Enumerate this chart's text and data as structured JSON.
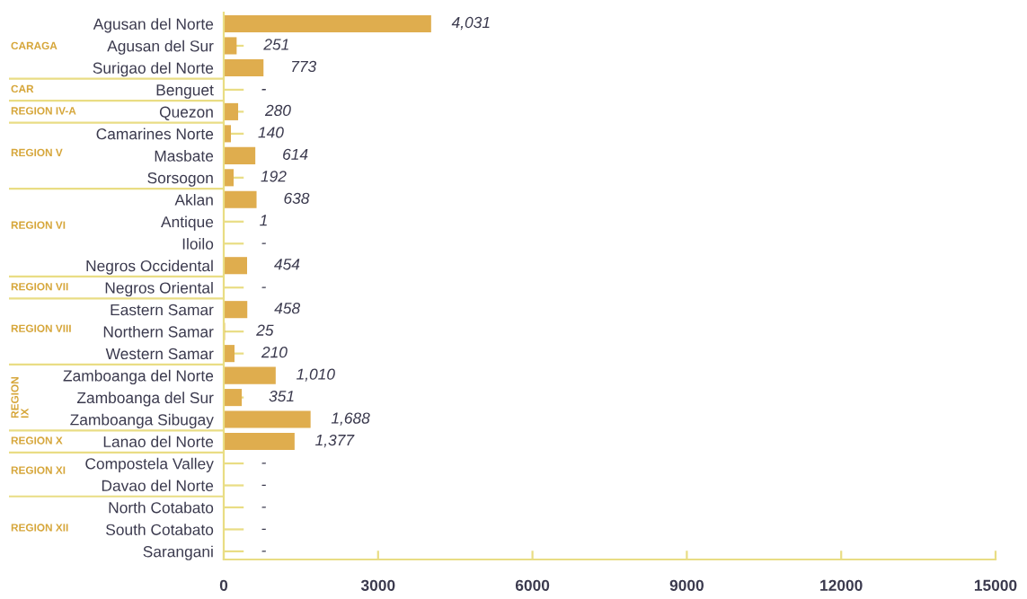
{
  "chart_data": {
    "type": "bar",
    "orientation": "horizontal",
    "categories": [
      "Agusan del Norte",
      "Agusan del Sur",
      "Surigao del Norte",
      "Benguet",
      "Quezon",
      "Camarines Norte",
      "Masbate",
      "Sorsogon",
      "Aklan",
      "Antique",
      "Iloilo",
      "Negros Occidental",
      "Negros Oriental",
      "Eastern Samar",
      "Northern Samar",
      "Western Samar",
      "Zamboanga del Norte",
      "Zamboanga del Sur",
      "Zamboanga Sibugay",
      "Lanao del Norte",
      "Compostela Valley",
      "Davao del Norte",
      "North Cotabato",
      "South Cotabato",
      "Sarangani"
    ],
    "values": [
      4031,
      251,
      773,
      null,
      280,
      140,
      614,
      192,
      638,
      1,
      null,
      454,
      null,
      458,
      25,
      210,
      1010,
      351,
      1688,
      1377,
      null,
      null,
      null,
      null,
      null
    ],
    "value_labels": [
      "4,031",
      "251",
      "773",
      "-",
      "280",
      "140",
      "614",
      "192",
      "638",
      "1",
      "-",
      "454",
      "-",
      "458",
      "25",
      "210",
      "1,010",
      "351",
      "1,688",
      "1,377",
      "-",
      "-",
      "-",
      "-",
      "-"
    ],
    "color": "#dfad4e",
    "xlim": [
      0,
      15000
    ],
    "xticks": [
      0,
      3000,
      6000,
      9000,
      12000,
      15000
    ],
    "annotations": [
      "CARAGA",
      "CAR",
      "REGION IV-A",
      "REGION V",
      "REGION VI",
      "REGION VII",
      "REGION VIII",
      "REGION IX",
      "REGION X",
      "REGION XI",
      "REGION XII"
    ]
  }
}
